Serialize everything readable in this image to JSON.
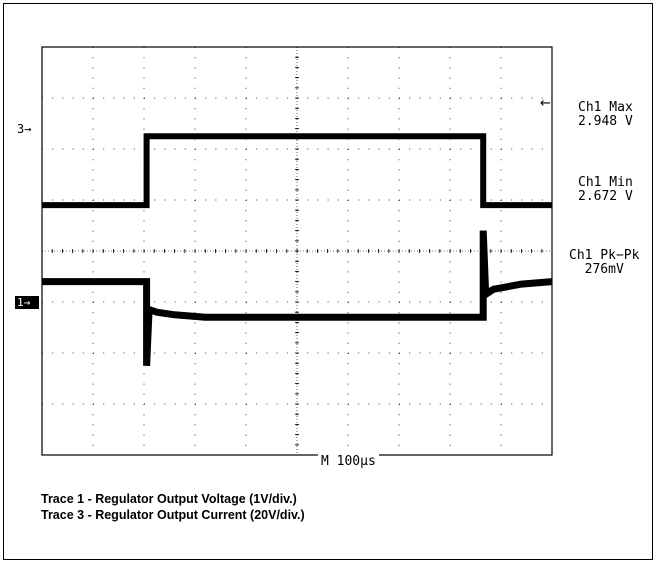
{
  "chart_data": {
    "type": "line",
    "timebase_label": "M  100µs",
    "grid": true,
    "x_divisions": 10,
    "y_divisions": 8,
    "ch3_marker": "3→",
    "ch1_marker": "1→",
    "series": [
      {
        "name": "Trace 3",
        "x": [
          0,
          2.05,
          2.05,
          8.65,
          8.65,
          10
        ],
        "y": [
          4.9,
          4.9,
          6.25,
          6.25,
          4.9,
          4.9
        ],
        "color": "#000000"
      },
      {
        "name": "Trace 1",
        "x": [
          0,
          2.05,
          2.05,
          2.1,
          2.25,
          2.6,
          3.2,
          8.65,
          8.65,
          8.7,
          8.85,
          9.4,
          10
        ],
        "y": [
          3.4,
          3.4,
          1.75,
          2.85,
          2.8,
          2.75,
          2.7,
          2.7,
          4.4,
          3.15,
          3.25,
          3.35,
          3.4
        ],
        "color": "#000000"
      }
    ]
  },
  "readouts": [
    {
      "label": "Ch1 Max",
      "value": "2.948 V"
    },
    {
      "label": "Ch1 Min",
      "value": "2.672 V"
    },
    {
      "label": "Ch1 Pk−Pk",
      "value": "276mV"
    }
  ],
  "max_arrow": "←",
  "captions": [
    "Trace 1 - Regulator Output Voltage (1V/div.)",
    "Trace 3 - Regulator Output Current (20V/div.)"
  ]
}
